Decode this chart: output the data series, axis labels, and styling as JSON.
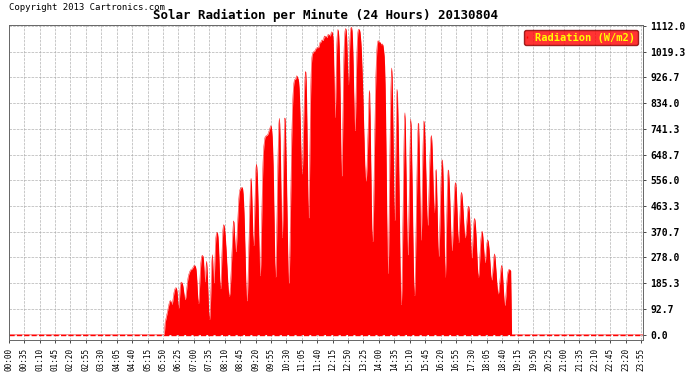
{
  "title": "Solar Radiation per Minute (24 Hours) 20130804",
  "ylabel": "Radiation (W/m2)",
  "copyright": "Copyright 2013 Cartronics.com",
  "bg_color": "#ffffff",
  "plot_bg_color": "#ffffff",
  "fill_color": "#ff0000",
  "line_color": "#ff0000",
  "grid_color": "#aaaaaa",
  "legend_bg": "#ff0000",
  "legend_text_color": "#ffff00",
  "yticks": [
    0.0,
    92.7,
    185.3,
    278.0,
    370.7,
    463.3,
    556.0,
    648.7,
    741.3,
    834.0,
    926.7,
    1019.3,
    1112.0
  ],
  "ymax": 1112.0,
  "xtick_interval_minutes": 35,
  "total_minutes": 1440,
  "sunrise_min": 353,
  "sunset_min": 1140,
  "peak_min": 775,
  "peak_val": 1112.0
}
